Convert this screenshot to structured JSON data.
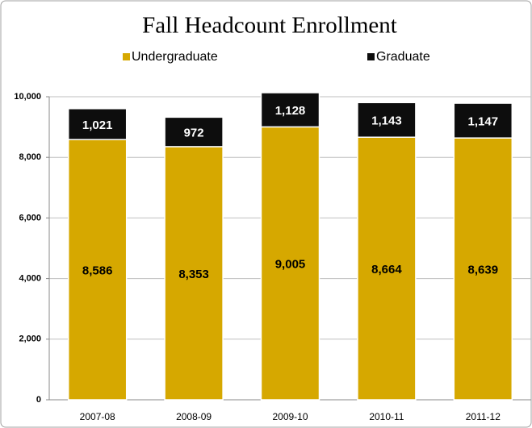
{
  "chart_data": {
    "type": "stacked_bar",
    "title": "Fall Headcount Enrollment",
    "categories": [
      "2007-08",
      "2008-09",
      "2009-10",
      "2010-11",
      "2011-12"
    ],
    "series": [
      {
        "name": "Undergraduate",
        "color": "#d6a800",
        "values": [
          8586,
          8353,
          9005,
          8664,
          8639
        ],
        "value_labels": [
          "8,586",
          "8,353",
          "9,005",
          "8,664",
          "8,639"
        ]
      },
      {
        "name": "Graduate",
        "color": "#0d0d0d",
        "values": [
          1021,
          972,
          1128,
          1143,
          1147
        ],
        "value_labels": [
          "1,021",
          "972",
          "1,128",
          "1,143",
          "1,147"
        ]
      }
    ],
    "ylim": [
      0,
      10000
    ],
    "yticks": [
      0,
      {
        "value": 2000,
        "label": "2,000"
      },
      {
        "value": 4000,
        "label": "4,000"
      },
      {
        "value": 6000,
        "label": "6,000"
      },
      {
        "value": 8000,
        "label": "8,000"
      },
      {
        "value": 10000,
        "label": "10,000"
      }
    ],
    "grid": true,
    "legend": "top"
  }
}
